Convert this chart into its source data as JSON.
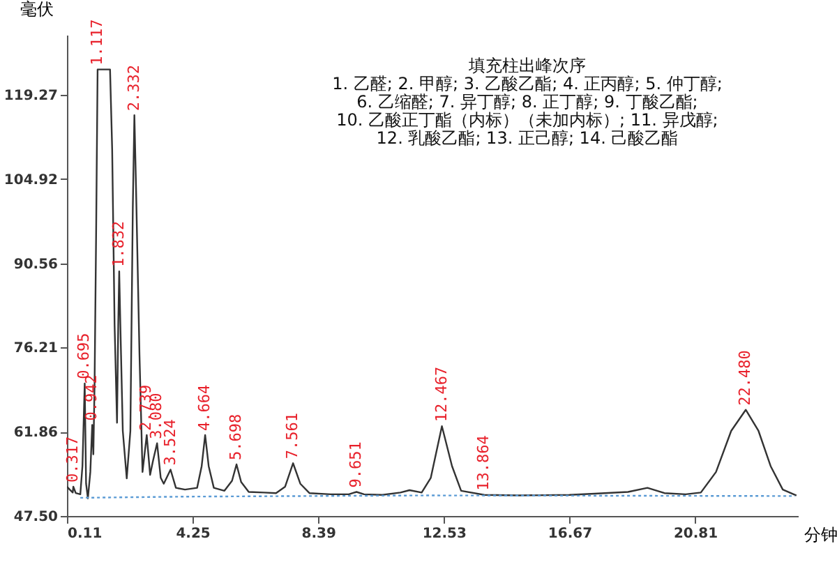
{
  "chart_data": {
    "type": "line",
    "title": "填充柱出峰次序",
    "subtitle": "1. 乙醛; 2. 甲醇; 3. 乙酸乙酯; 4. 正丙醇; 5. 仲丁醇; 6. 乙缩醛; 7. 异丁醇; 8. 正丁醇; 9. 丁酸乙酯; 10. 乙酸正丁酯（内标）（未加内标）; 11. 异戊醇; 12. 乳酸乙酯; 13. 正己醇; 14. 己酸乙酯",
    "xlabel": "分钟",
    "ylabel": "毫伏",
    "xlim": [
      0.11,
      24.2
    ],
    "ylim": [
      47.5,
      129.5
    ],
    "xticks": [
      0.11,
      4.25,
      8.39,
      12.53,
      16.67,
      20.81
    ],
    "yticks": [
      {
        "value": 47.5,
        "label": "47.50"
      },
      61.86,
      76.21,
      90.56,
      104.92,
      119.27
    ],
    "grid": false,
    "series": [
      {
        "color": "#333333",
        "line_style": "solid",
        "x": [
          0.11,
          0.2,
          0.3,
          0.32,
          0.4,
          0.55,
          0.62,
          0.695,
          0.74,
          0.8,
          0.88,
          0.942,
          0.98,
          1.02,
          1.07,
          1.12,
          1.53,
          1.6,
          1.68,
          1.76,
          1.8,
          1.832,
          1.87,
          1.95,
          2.08,
          2.2,
          2.28,
          2.332,
          2.38,
          2.5,
          2.6,
          2.739,
          2.85,
          2.95,
          3.08,
          3.2,
          3.3,
          3.524,
          3.7,
          4.0,
          4.4,
          4.55,
          4.664,
          4.78,
          4.95,
          5.3,
          5.55,
          5.698,
          5.85,
          6.1,
          6.6,
          7.0,
          7.3,
          7.561,
          7.8,
          8.1,
          8.8,
          9.4,
          9.651,
          9.9,
          10.5,
          11.1,
          11.4,
          11.8,
          12.1,
          12.467,
          12.8,
          13.1,
          13.864,
          15.0,
          16.67,
          17.5,
          18.6,
          19.24,
          19.8,
          20.5,
          21.0,
          21.5,
          22.0,
          22.48,
          22.9,
          23.3,
          23.7,
          24.15
        ],
        "values": [
          52.5,
          52.0,
          51.5,
          52.5,
          51.4,
          51.2,
          56,
          70.1,
          53,
          50.5,
          55,
          63.0,
          58,
          70,
          95,
          123.6,
          123.6,
          110,
          80,
          63.4,
          80,
          89.2,
          80,
          62,
          53.9,
          62,
          100,
          115.8,
          105,
          75,
          55,
          61.3,
          54.5,
          57,
          59.9,
          54,
          53,
          55.4,
          52.3,
          52.0,
          52.3,
          56,
          61.3,
          56,
          52.3,
          51.8,
          53.5,
          56.3,
          53.3,
          51.6,
          51.5,
          51.4,
          52.5,
          56.5,
          53,
          51.4,
          51.2,
          51.2,
          51.6,
          51.2,
          51.1,
          51.5,
          51.9,
          51.5,
          54,
          62.8,
          56,
          51.8,
          51.1,
          51.0,
          51.1,
          51.3,
          51.6,
          52.3,
          51.4,
          51.2,
          51.5,
          55,
          62,
          65.6,
          62,
          56,
          52,
          51.0
        ]
      },
      {
        "color": "#5b9bd5",
        "line_style": "dotted",
        "x": [
          0.55,
          4.0,
          12.0,
          24.1
        ],
        "values": [
          50.6,
          50.8,
          51.0,
          50.9
        ]
      }
    ],
    "annotations": [
      {
        "text": "0.317",
        "x": 0.317,
        "y": 52.5
      },
      {
        "text": "0.695",
        "x": 0.695,
        "y": 70.1
      },
      {
        "text": "0.942",
        "x": 0.942,
        "y": 63.0
      },
      {
        "text": "1.117",
        "x": 1.117,
        "y": 123.6
      },
      {
        "text": "1.832",
        "x": 1.832,
        "y": 89.2
      },
      {
        "text": "2.332",
        "x": 2.332,
        "y": 115.8
      },
      {
        "text": "2.739",
        "x": 2.739,
        "y": 61.3
      },
      {
        "text": "3.080",
        "x": 3.08,
        "y": 59.9
      },
      {
        "text": "3.524",
        "x": 3.524,
        "y": 55.4
      },
      {
        "text": "4.664",
        "x": 4.664,
        "y": 61.3
      },
      {
        "text": "5.698",
        "x": 5.698,
        "y": 56.3
      },
      {
        "text": "7.561",
        "x": 7.561,
        "y": 56.5
      },
      {
        "text": "9.651",
        "x": 9.651,
        "y": 51.6
      },
      {
        "text": "12.467",
        "x": 12.467,
        "y": 62.8
      },
      {
        "text": "13.864",
        "x": 13.864,
        "y": 51.1
      },
      {
        "text": "22.480",
        "x": 22.48,
        "y": 65.6
      }
    ]
  }
}
